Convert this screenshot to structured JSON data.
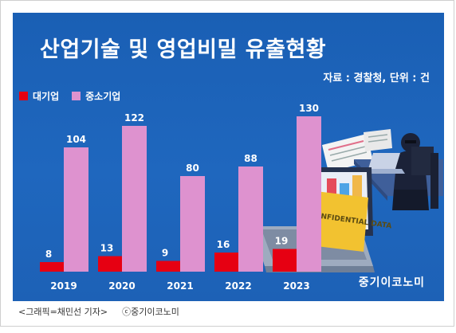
{
  "chart_data": {
    "type": "bar",
    "title": "산업기술 및 영업비밀 유출현황",
    "source": "자료 : 경찰청, 단위 : 건",
    "categories": [
      "2019",
      "2020",
      "2021",
      "2022",
      "2023"
    ],
    "series": [
      {
        "name": "대기업",
        "values": [
          8,
          13,
          9,
          16,
          19
        ]
      },
      {
        "name": "중소기업",
        "values": [
          104,
          122,
          80,
          88,
          130
        ]
      }
    ],
    "xlabel": "",
    "ylabel": "",
    "ylim": [
      0,
      130
    ],
    "grid": false,
    "legend": "top-left"
  },
  "colors": {
    "background": "#1d62b8",
    "large_company": "#e60012",
    "sme": "#de92cf"
  },
  "illustration": {
    "label": "CONFIDENTIAL DATA",
    "icons": [
      "laptop-icon",
      "hacker-icon",
      "document-icon"
    ]
  },
  "brand": "중기이코노미",
  "caption": {
    "credit": "<그래픽=채민선 기자>",
    "copyright": "ⓒ중기이코노미"
  }
}
